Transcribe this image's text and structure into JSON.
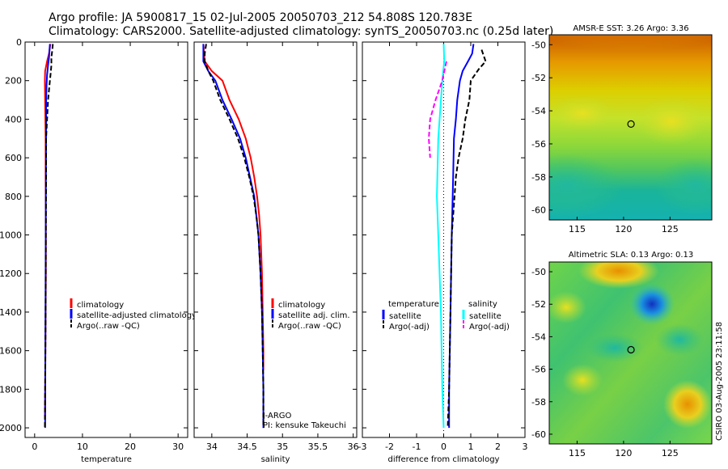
{
  "title": {
    "line1": "Argo profile: JA 5900817_15 02-Jul-2005 20050703_212 54.808S 120.783E",
    "line2": "Climatology: CARS2000. Satellite-adjusted climatology: synTS_20050703.nc (0.25d later)"
  },
  "side_credit": "CSIRO 03-Aug-2005 23:11:58",
  "colors": {
    "climatology": "#ff0000",
    "satellite": "#0000ff",
    "argo": "#000000",
    "temperature_diff": "#00ffff",
    "argo_adj_salinity": "#ff00ff"
  },
  "chart_data": [
    {
      "id": "temperature",
      "type": "line",
      "xlabel": "temperature",
      "ylabel": "",
      "xlim": [
        -2,
        32
      ],
      "ylim": [
        2050,
        0
      ],
      "xticks": [
        "0",
        "10",
        "20",
        "30"
      ],
      "xtick_values": [
        0,
        10,
        20,
        30
      ],
      "yticks": [
        "0",
        "200",
        "400",
        "600",
        "800",
        "1000",
        "1200",
        "1400",
        "1600",
        "1800",
        "2000"
      ],
      "ytick_values": [
        0,
        200,
        400,
        600,
        800,
        1000,
        1200,
        1400,
        1600,
        1800,
        2000
      ],
      "legend_position": "center-right",
      "legend": [
        "climatology",
        "satellite-adjusted climatology",
        "Argo(..raw -QC)"
      ],
      "series": [
        {
          "name": "climatology",
          "color": "#ff0000",
          "dash": false,
          "points": [
            [
              3.3,
              10
            ],
            [
              3.0,
              60
            ],
            [
              2.6,
              100
            ],
            [
              2.2,
              150
            ],
            [
              2.15,
              200
            ],
            [
              2.2,
              300
            ],
            [
              2.25,
              400
            ],
            [
              2.3,
              500
            ],
            [
              2.3,
              700
            ],
            [
              2.35,
              1000
            ],
            [
              2.35,
              1200
            ],
            [
              2.3,
              1400
            ],
            [
              2.25,
              1600
            ],
            [
              2.2,
              1800
            ],
            [
              2.15,
              1950
            ]
          ]
        },
        {
          "name": "satellite-adjusted climatology",
          "color": "#0000ff",
          "dash": false,
          "points": [
            [
              3.2,
              10
            ],
            [
              3.0,
              80
            ],
            [
              2.8,
              120
            ],
            [
              2.6,
              170
            ],
            [
              2.5,
              220
            ],
            [
              2.4,
              300
            ],
            [
              2.4,
              500
            ],
            [
              2.35,
              800
            ],
            [
              2.3,
              1200
            ],
            [
              2.25,
              1600
            ],
            [
              2.2,
              2000
            ]
          ]
        },
        {
          "name": "Argo(..raw -QC)",
          "color": "#000000",
          "dash": true,
          "points": [
            [
              3.8,
              10
            ],
            [
              3.7,
              40
            ],
            [
              3.5,
              80
            ],
            [
              3.5,
              120
            ],
            [
              3.4,
              150
            ],
            [
              3.2,
              200
            ],
            [
              2.8,
              300
            ],
            [
              2.6,
              400
            ],
            [
              2.4,
              500
            ],
            [
              2.4,
              700
            ],
            [
              2.35,
              1000
            ],
            [
              2.3,
              1400
            ],
            [
              2.2,
              1800
            ],
            [
              2.15,
              2000
            ]
          ]
        }
      ]
    },
    {
      "id": "salinity",
      "type": "line",
      "xlabel": "salinity",
      "ylabel": "",
      "xlim": [
        33.75,
        36.05
      ],
      "ylim": [
        2050,
        0
      ],
      "xticks": [
        "34",
        "34.5",
        "35",
        "35.5",
        "36"
      ],
      "xtick_values": [
        34,
        34.5,
        35,
        35.5,
        36
      ],
      "legend_position": "center-right",
      "legend": [
        "climatology",
        "satellite adj. clim.",
        "Argo(..raw -QC)"
      ],
      "annotations": [
        "J-ARGO",
        "PI: kensuke Takeuchi"
      ],
      "series": [
        {
          "name": "climatology",
          "color": "#ff0000",
          "dash": false,
          "points": [
            [
              33.88,
              10
            ],
            [
              33.9,
              100
            ],
            [
              34.0,
              150
            ],
            [
              34.15,
              200
            ],
            [
              34.25,
              300
            ],
            [
              34.38,
              400
            ],
            [
              34.48,
              500
            ],
            [
              34.55,
              600
            ],
            [
              34.6,
              700
            ],
            [
              34.64,
              800
            ],
            [
              34.67,
              900
            ],
            [
              34.69,
              1000
            ],
            [
              34.71,
              1200
            ],
            [
              34.72,
              1400
            ],
            [
              34.73,
              1600
            ],
            [
              34.73,
              1700
            ]
          ]
        },
        {
          "name": "satellite adj. clim.",
          "color": "#0000ff",
          "dash": false,
          "points": [
            [
              33.88,
              10
            ],
            [
              33.88,
              100
            ],
            [
              33.95,
              150
            ],
            [
              34.05,
              200
            ],
            [
              34.15,
              300
            ],
            [
              34.28,
              400
            ],
            [
              34.4,
              500
            ],
            [
              34.48,
              600
            ],
            [
              34.54,
              700
            ],
            [
              34.6,
              800
            ],
            [
              34.63,
              900
            ],
            [
              34.66,
              1000
            ],
            [
              34.69,
              1200
            ],
            [
              34.71,
              1400
            ],
            [
              34.72,
              1600
            ],
            [
              34.73,
              1800
            ],
            [
              34.73,
              2000
            ]
          ]
        },
        {
          "name": "Argo(..raw -QC)",
          "color": "#000000",
          "dash": true,
          "points": [
            [
              33.92,
              10
            ],
            [
              33.9,
              60
            ],
            [
              33.9,
              100
            ],
            [
              33.95,
              150
            ],
            [
              34.02,
              200
            ],
            [
              34.12,
              300
            ],
            [
              34.25,
              400
            ],
            [
              34.37,
              500
            ],
            [
              34.46,
              600
            ],
            [
              34.53,
              700
            ],
            [
              34.59,
              800
            ],
            [
              34.63,
              900
            ],
            [
              34.66,
              1000
            ],
            [
              34.69,
              1200
            ],
            [
              34.71,
              1400
            ],
            [
              34.72,
              1600
            ],
            [
              34.73,
              1800
            ],
            [
              34.73,
              2000
            ]
          ]
        }
      ]
    },
    {
      "id": "difference",
      "type": "line",
      "xlabel": "difference from climatology",
      "ylabel": "",
      "xlim": [
        -3,
        3
      ],
      "ylim": [
        2050,
        0
      ],
      "xticks": [
        "-3",
        "-2",
        "-1",
        "0",
        "1",
        "2",
        "3"
      ],
      "xtick_values": [
        -3,
        -2,
        -1,
        0,
        1,
        2,
        3
      ],
      "legend_position": "center",
      "legend_groups": [
        {
          "heading": "temperature",
          "entries": [
            "satellite",
            "Argo(-adj)"
          ]
        },
        {
          "heading": "salinity",
          "entries": [
            "satellite",
            "Argo(-adj)"
          ]
        }
      ],
      "series": [
        {
          "name": "temperature satellite",
          "color": "#0000ff",
          "dash": false,
          "points": [
            [
              1.1,
              10
            ],
            [
              1.05,
              60
            ],
            [
              0.9,
              100
            ],
            [
              0.7,
              150
            ],
            [
              0.6,
              200
            ],
            [
              0.5,
              300
            ],
            [
              0.45,
              400
            ],
            [
              0.38,
              500
            ],
            [
              0.35,
              700
            ],
            [
              0.3,
              1000
            ],
            [
              0.25,
              1400
            ],
            [
              0.2,
              1800
            ],
            [
              0.2,
              2000
            ]
          ]
        },
        {
          "name": "temperature Argo(-adj)",
          "color": "#000000",
          "dash": true,
          "points": [
            [
              1.4,
              40
            ],
            [
              1.55,
              100
            ],
            [
              1.3,
              140
            ],
            [
              1.0,
              200
            ],
            [
              0.95,
              300
            ],
            [
              0.8,
              400
            ],
            [
              0.7,
              500
            ],
            [
              0.55,
              600
            ],
            [
              0.45,
              700
            ],
            [
              0.4,
              800
            ],
            [
              0.3,
              1000
            ],
            [
              0.25,
              1400
            ],
            [
              0.2,
              1800
            ],
            [
              0.15,
              2000
            ]
          ]
        },
        {
          "name": "salinity satellite",
          "color": "#00ffff",
          "dash": false,
          "points": [
            [
              0.0,
              10
            ],
            [
              0.02,
              100
            ],
            [
              -0.05,
              200
            ],
            [
              -0.2,
              500
            ],
            [
              -0.25,
              800
            ],
            [
              -0.2,
              1000
            ],
            [
              -0.1,
              1400
            ],
            [
              -0.05,
              1800
            ],
            [
              0.0,
              2000
            ]
          ]
        },
        {
          "name": "salinity Argo(-adj)",
          "color": "#ff00ff",
          "dash": true,
          "points": [
            [
              0.1,
              100
            ],
            [
              -0.05,
              200
            ],
            [
              -0.3,
              300
            ],
            [
              -0.5,
              400
            ],
            [
              -0.55,
              500
            ],
            [
              -0.5,
              600
            ]
          ]
        }
      ]
    },
    {
      "id": "sst_map",
      "type": "heatmap",
      "title": "AMSR-E SST: 3.26 Argo: 3.36",
      "xlim": [
        112,
        129.5
      ],
      "ylim": [
        -60.6,
        -49.4
      ],
      "xticks": [
        "115",
        "120",
        "125"
      ],
      "xtick_values": [
        115,
        120,
        125
      ],
      "yticks": [
        "-50",
        "-52",
        "-54",
        "-56",
        "-58",
        "-60"
      ],
      "ytick_values": [
        -50,
        -52,
        -54,
        -56,
        -58,
        -60
      ],
      "argo_position": [
        120.8,
        -54.8
      ]
    },
    {
      "id": "sla_map",
      "type": "heatmap",
      "title": "Altimetric SLA: 0.13 Argo: 0.13",
      "xlim": [
        112,
        129.5
      ],
      "ylim": [
        -60.6,
        -49.4
      ],
      "xticks": [
        "115",
        "120",
        "125"
      ],
      "xtick_values": [
        115,
        120,
        125
      ],
      "yticks": [
        "-50",
        "-52",
        "-54",
        "-56",
        "-58",
        "-60"
      ],
      "ytick_values": [
        -50,
        -52,
        -54,
        -56,
        -58,
        -60
      ],
      "argo_position": [
        120.8,
        -54.8
      ]
    }
  ]
}
